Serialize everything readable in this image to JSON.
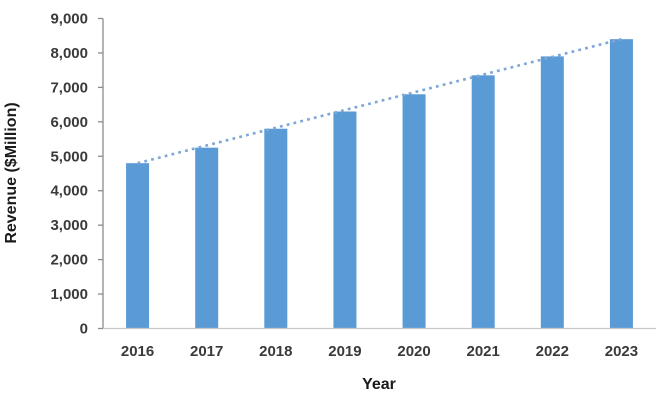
{
  "chart_data": {
    "type": "bar",
    "title": "",
    "categories": [
      "2016",
      "2017",
      "2018",
      "2019",
      "2020",
      "2021",
      "2022",
      "2023"
    ],
    "series": [
      {
        "name": "Revenue",
        "values": [
          4800,
          5250,
          5800,
          6300,
          6800,
          7350,
          7900,
          8400
        ]
      }
    ],
    "xlabel": "Year",
    "ylabel": "Revenue ($Million)",
    "ylim": [
      0,
      9000
    ],
    "ytick_step": 1000,
    "ytick_labels": [
      "0",
      "1,000",
      "2,000",
      "3,000",
      "4,000",
      "5,000",
      "6,000",
      "7,000",
      "8,000",
      "9,000"
    ],
    "grid": false,
    "legend": false,
    "trendline": {
      "style": "dotted",
      "start_value": 4800,
      "end_value": 8400,
      "color": "#7DA7D9"
    },
    "colors": {
      "bar": "#5B9BD5",
      "y_axis": "#8C8C8C",
      "x_axis": "#C9C9C9",
      "tick_text": "#3A3A3A",
      "title_text": "#1A1A1A",
      "background": "#FFFFFF"
    }
  }
}
